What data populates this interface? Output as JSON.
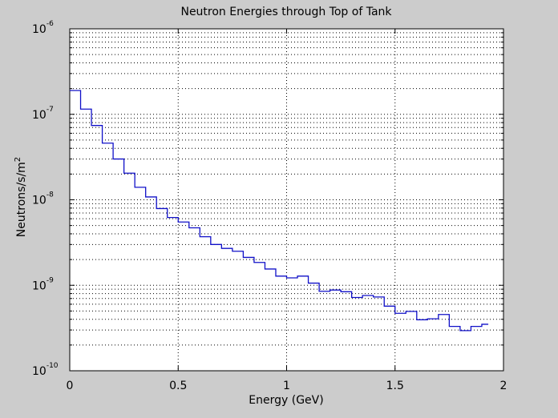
{
  "chart_data": {
    "type": "line",
    "style": "stairs",
    "title": "Neutron Energies through Top of Tank",
    "xlabel": "Energy (GeV)",
    "ylabel": "Neutrons/s/m",
    "ylabel_superscript": "2",
    "xscale": "linear",
    "yscale": "log",
    "xlim": [
      0,
      2
    ],
    "ylim": [
      1e-10,
      1e-06
    ],
    "grid": true,
    "line_color": "#1010c8",
    "x_ticks": [
      {
        "value": 0,
        "label": "0"
      },
      {
        "value": 0.5,
        "label": "0.5"
      },
      {
        "value": 1,
        "label": "1"
      },
      {
        "value": 1.5,
        "label": "1.5"
      },
      {
        "value": 2,
        "label": "2"
      }
    ],
    "y_ticks": [
      {
        "exponent": -6,
        "base": "10",
        "sup": "-6"
      },
      {
        "exponent": -7,
        "base": "10",
        "sup": "-7"
      },
      {
        "exponent": -8,
        "base": "10",
        "sup": "-8"
      },
      {
        "exponent": -9,
        "base": "10",
        "sup": "-9"
      },
      {
        "exponent": -10,
        "base": "10",
        "sup": "-10"
      }
    ],
    "bin_width": 0.05,
    "x_end": 1.93,
    "x": [
      0.0,
      0.05,
      0.1,
      0.15,
      0.2,
      0.25,
      0.3,
      0.35,
      0.4,
      0.45,
      0.5,
      0.55,
      0.6,
      0.65,
      0.7,
      0.75,
      0.8,
      0.85,
      0.9,
      0.95,
      1.0,
      1.05,
      1.1,
      1.15,
      1.2,
      1.25,
      1.3,
      1.35,
      1.4,
      1.45,
      1.5,
      1.55,
      1.6,
      1.65,
      1.7,
      1.75,
      1.8,
      1.85,
      1.9
    ],
    "values": [
      1.9e-07,
      1.15e-07,
      7.4e-08,
      4.6e-08,
      3e-08,
      2.05e-08,
      1.4e-08,
      1.08e-08,
      7.9e-09,
      6.2e-09,
      5.5e-09,
      4.7e-09,
      3.7e-09,
      3e-09,
      2.7e-09,
      2.5e-09,
      2.12e-09,
      1.85e-09,
      1.55e-09,
      1.28e-09,
      1.22e-09,
      1.28e-09,
      1.06e-09,
      8.5e-10,
      8.8e-10,
      8.4e-10,
      7.2e-10,
      7.6e-10,
      7.3e-10,
      5.7e-10,
      4.7e-10,
      4.95e-10,
      3.95e-10,
      4.05e-10,
      4.55e-10,
      3.3e-10,
      2.95e-10,
      3.3e-10,
      3.5e-10
    ]
  }
}
